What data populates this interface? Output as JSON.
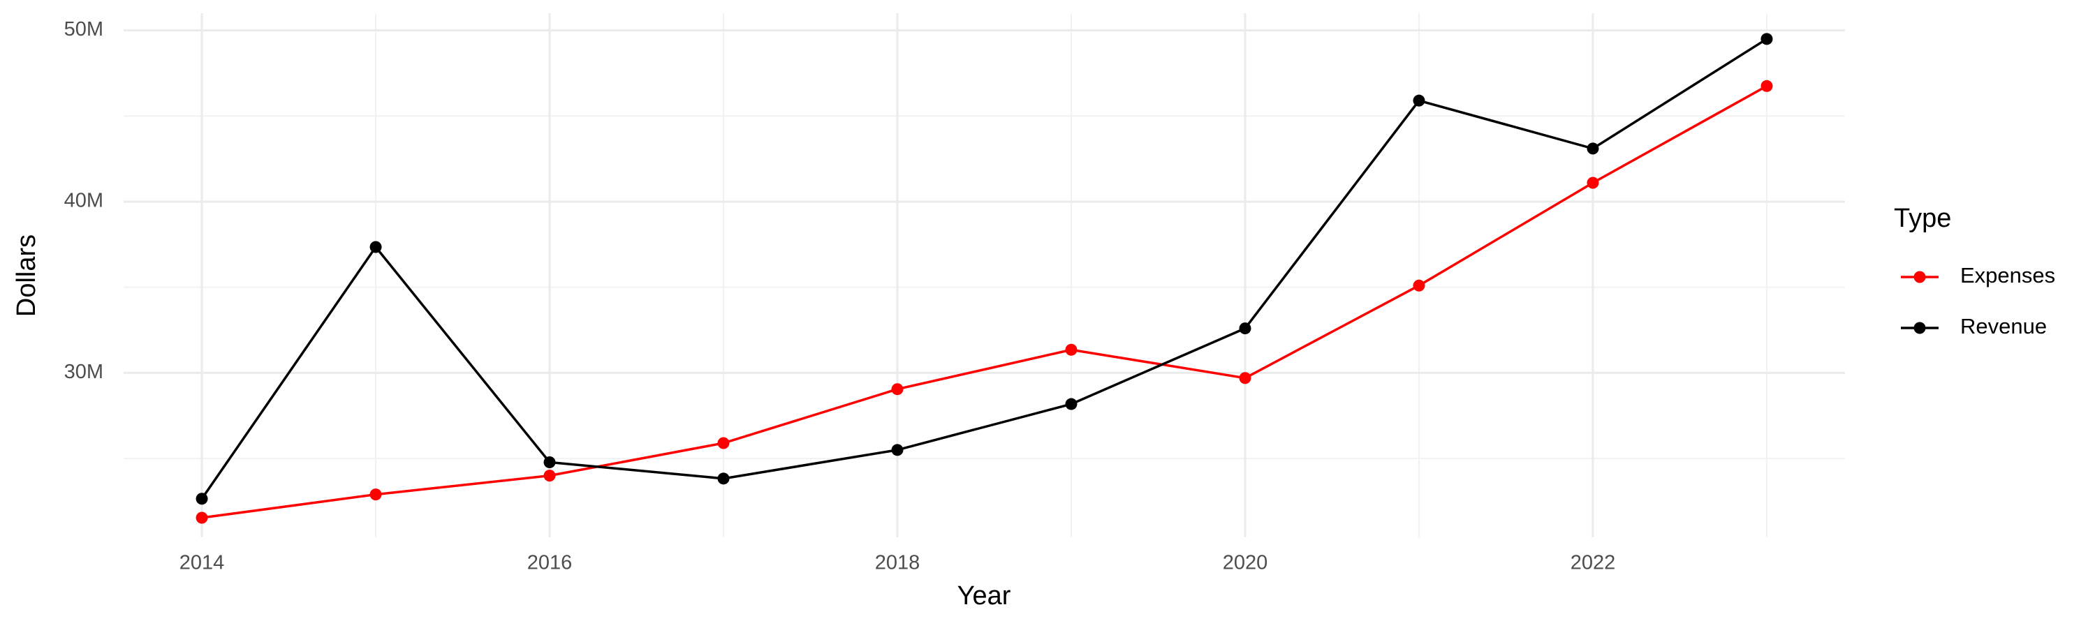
{
  "chart_data": {
    "type": "line",
    "x_label": "Year",
    "y_label": "Dollars",
    "legend_title": "Type",
    "x": [
      2014,
      2015,
      2016,
      2017,
      2018,
      2019,
      2020,
      2021,
      2022,
      2023
    ],
    "series": [
      {
        "name": "Expenses",
        "color": "#ff0000",
        "values": [
          21540000,
          22900000,
          24000000,
          25900000,
          29050000,
          31350000,
          29700000,
          35100000,
          41100000,
          46750000
        ]
      },
      {
        "name": "Revenue",
        "color": "#000000",
        "values": [
          22650000,
          37350000,
          24780000,
          23830000,
          25500000,
          28180000,
          32600000,
          45900000,
          43100000,
          49500000
        ]
      }
    ],
    "xlim": [
      2013.55,
      2023.45
    ],
    "xticks": [
      2014,
      2016,
      2018,
      2020,
      2022
    ],
    "ylim": [
      20400000,
      51000000
    ],
    "yticks": [
      {
        "value": 30000000,
        "label": "30M"
      },
      {
        "value": 40000000,
        "label": "40M"
      },
      {
        "value": 50000000,
        "label": "50M"
      }
    ],
    "grid": true,
    "legend_position": "right"
  }
}
